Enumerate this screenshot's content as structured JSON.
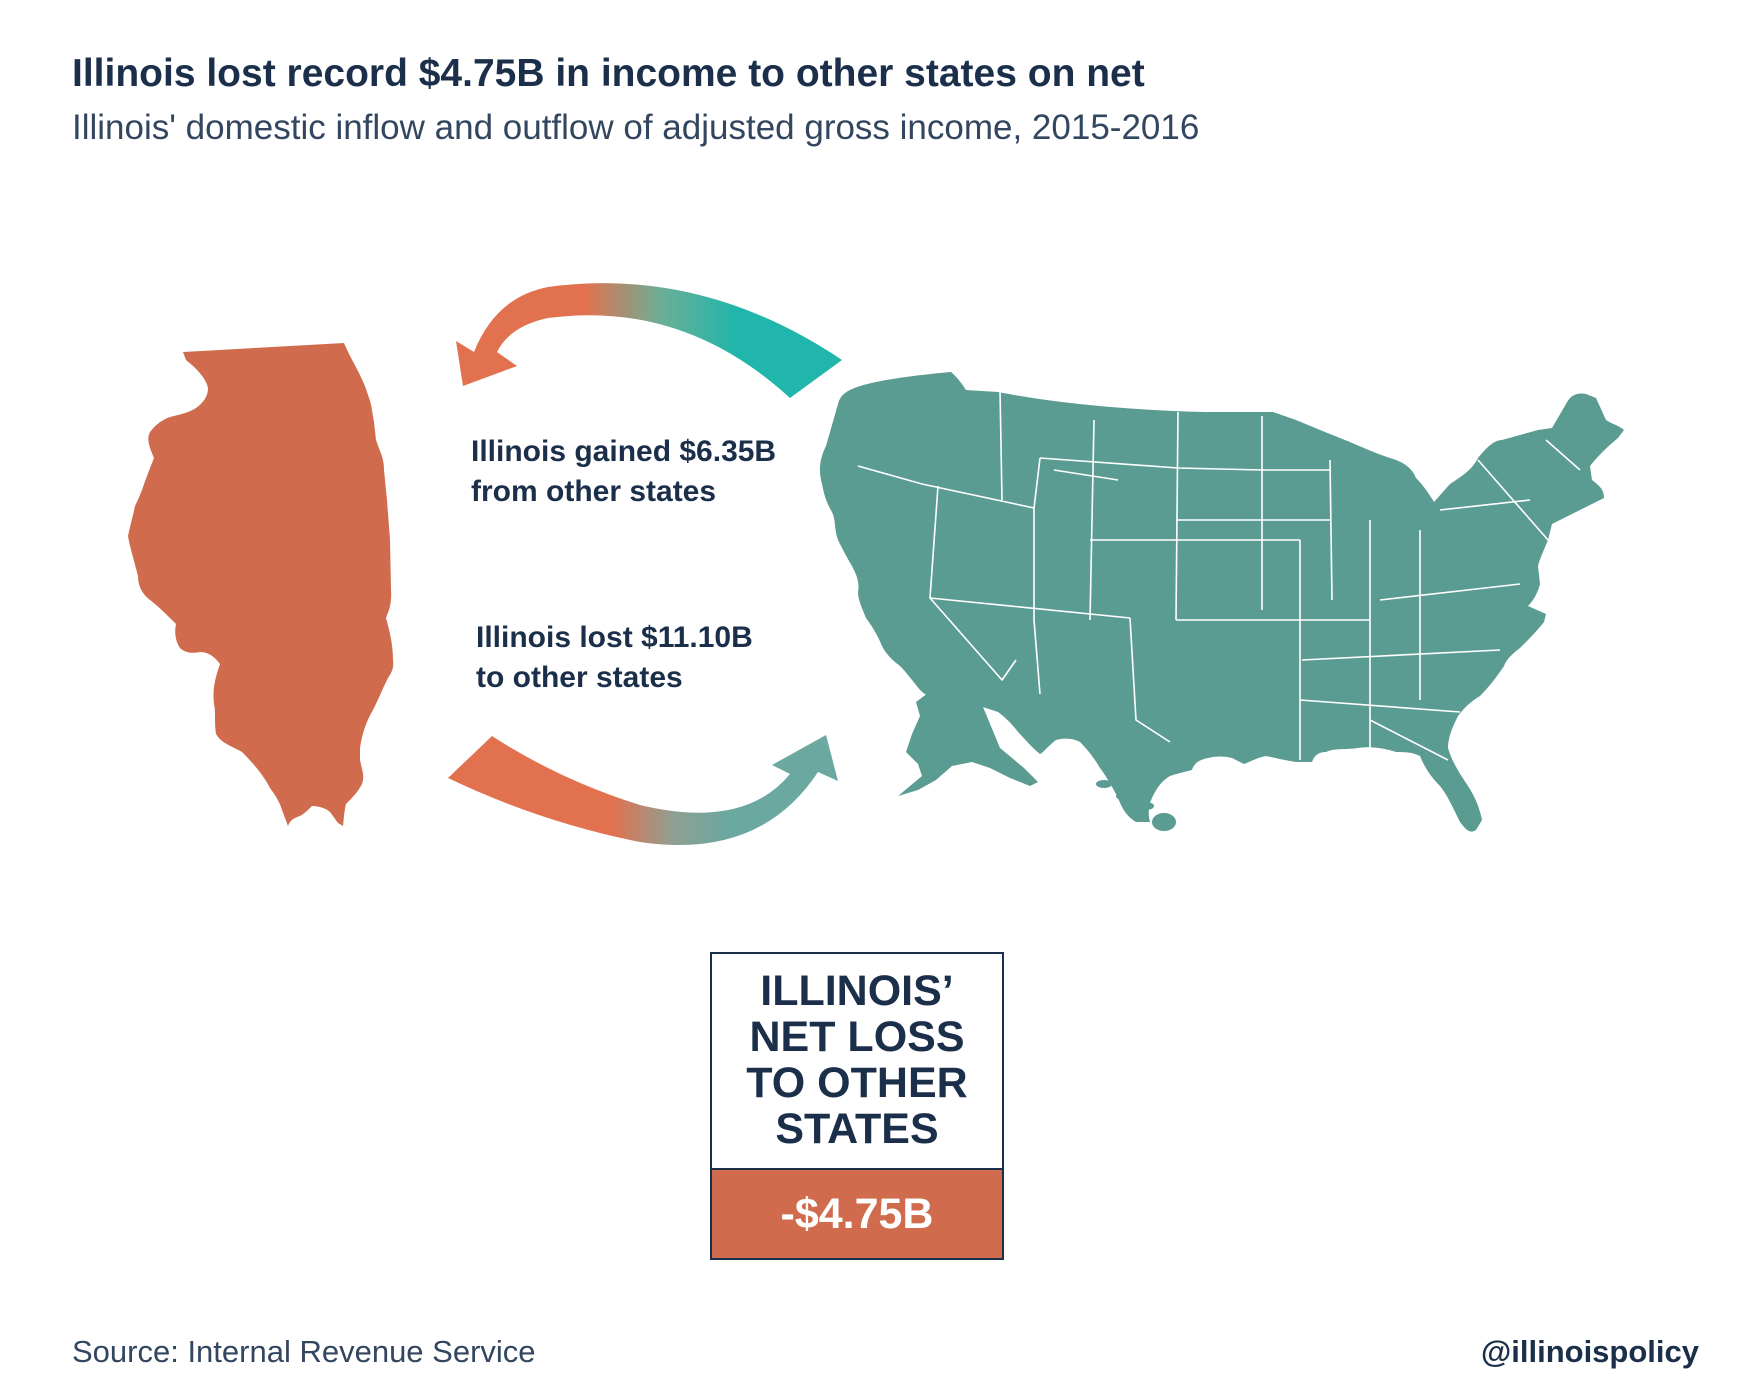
{
  "header": {
    "title": "Illinois lost record $4.75B in income to other states on net",
    "subtitle": "Illinois' domestic inflow and outflow of adjusted gross income, 2015-2016"
  },
  "flows": {
    "inflow": {
      "lines": [
        "Illinois gained $6.35B",
        "from other states"
      ],
      "amount_billions": 6.35
    },
    "outflow": {
      "lines": [
        "Illinois lost $11.10B",
        "to other states"
      ],
      "amount_billions": 11.1
    }
  },
  "net_box": {
    "heading_lines": [
      "ILLINOIS’",
      "NET LOSS",
      "TO OTHER",
      "STATES"
    ],
    "value": "-$4.75B",
    "value_billions": -4.75
  },
  "footer": {
    "source": "Source:  Internal Revenue Service",
    "handle": "@illinoispolicy"
  },
  "colors": {
    "illinois": "#d06c4d",
    "arrow_orange": "#e2714f",
    "arrow_teal": "#20b6ab",
    "arrow_teal_muted": "#6aa8a0",
    "us_map": "#5b9c92",
    "navy_text": "#1b2f4a"
  }
}
